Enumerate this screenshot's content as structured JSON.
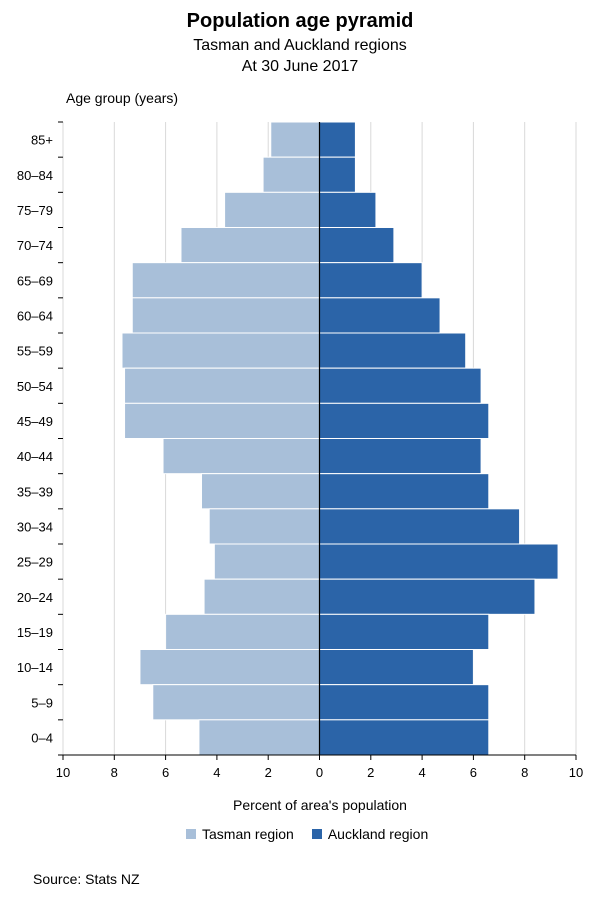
{
  "chart_data": {
    "type": "bar",
    "orientation": "horizontal-population-pyramid",
    "title": "Population age pyramid",
    "subtitle": [
      "Tasman and Auckland regions",
      "At 30 June 2017"
    ],
    "ylabel": "Age group (years)",
    "xlabel": "Percent of area's population",
    "xlim": [
      -10,
      10
    ],
    "xticks": [
      "10",
      "8",
      "6",
      "4",
      "2",
      "0",
      "2",
      "4",
      "6",
      "8",
      "10"
    ],
    "grid": true,
    "legend_position": "bottom",
    "categories": [
      "85+",
      "80–84",
      "75–79",
      "70–74",
      "65–69",
      "60–64",
      "55–59",
      "50–54",
      "45–49",
      "40–44",
      "35–39",
      "30–34",
      "25–29",
      "20–24",
      "15–19",
      "10–14",
      "5–9",
      "0–4"
    ],
    "series": [
      {
        "name": "Tasman region",
        "side": "left",
        "color": "#a8bfd9",
        "values": [
          1.9,
          2.2,
          3.7,
          5.4,
          7.3,
          7.3,
          7.7,
          7.6,
          7.6,
          6.1,
          4.6,
          4.3,
          4.1,
          4.5,
          6.0,
          7.0,
          6.5,
          4.7
        ]
      },
      {
        "name": "Auckland region",
        "side": "right",
        "color": "#2b64a8",
        "values": [
          1.4,
          1.4,
          2.2,
          2.9,
          4.0,
          4.7,
          5.7,
          6.3,
          6.6,
          6.3,
          6.6,
          7.8,
          9.3,
          8.4,
          6.6,
          6.0,
          6.6,
          6.6
        ]
      }
    ]
  },
  "source": "Source: Stats NZ"
}
